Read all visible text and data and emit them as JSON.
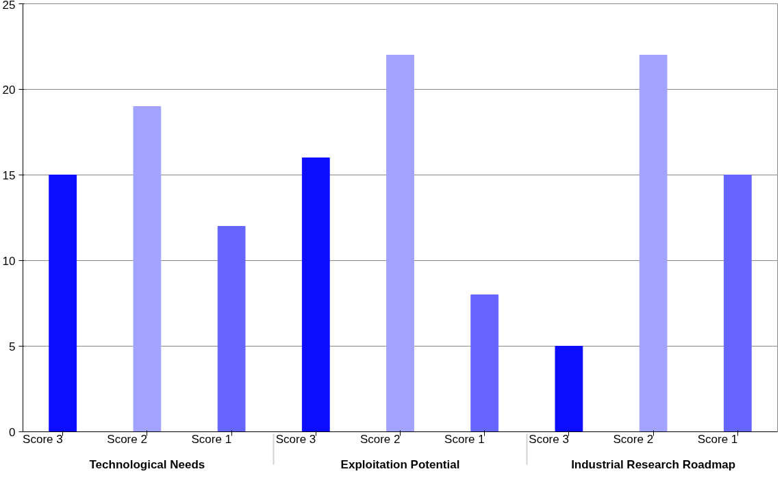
{
  "chart_data": {
    "type": "bar",
    "categories": [
      "Technological Needs",
      "Exploitation Potential",
      "Industrial Research Roadmap"
    ],
    "series": [
      {
        "name": "Score 3",
        "color": "#0c0cff",
        "values": [
          15,
          16,
          5
        ]
      },
      {
        "name": "Score 2",
        "color": "#a3a3ff",
        "values": [
          19,
          22,
          22
        ]
      },
      {
        "name": "Score 1",
        "color": "#6666ff",
        "values": [
          12,
          8,
          15
        ]
      }
    ],
    "ylim": [
      0,
      25
    ],
    "yticks": [
      0,
      5,
      10,
      15,
      20,
      25
    ],
    "grid": "y",
    "legend": false
  }
}
